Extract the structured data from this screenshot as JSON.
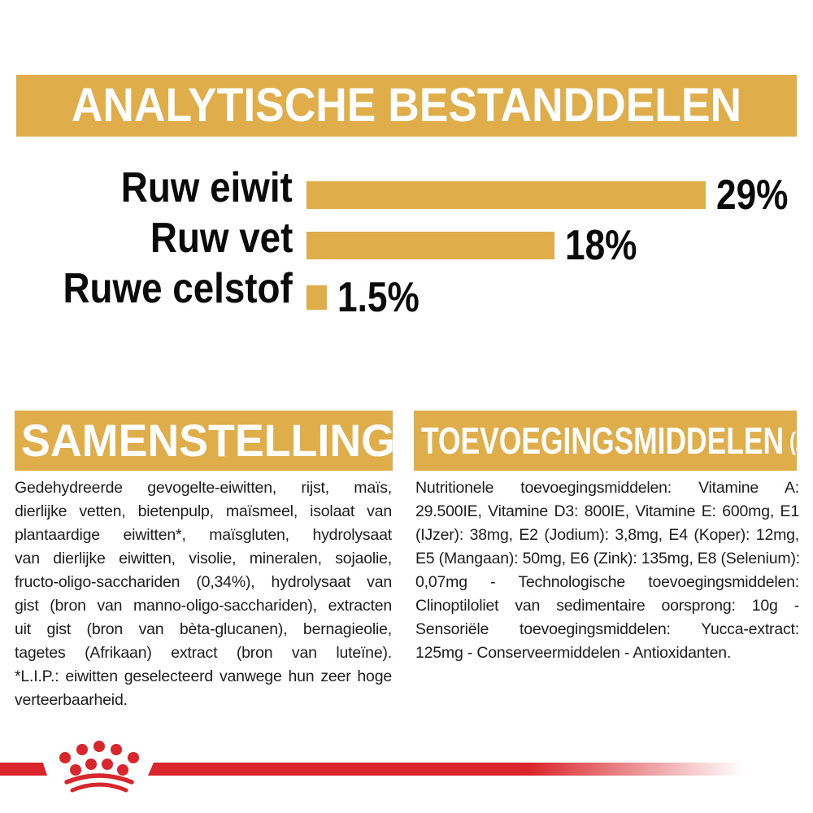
{
  "colors": {
    "gold": "#DFAE4B",
    "red": "#D8262C",
    "text": "#1D1D1D",
    "white": "#FFFFFF"
  },
  "header": {
    "title": "ANALYTISCHE BESTANDDELEN"
  },
  "chart_data": {
    "type": "bar",
    "orientation": "horizontal",
    "title": "ANALYTISCHE BESTANDDELEN",
    "categories": [
      "Ruw eiwit",
      "Ruw vet",
      "Ruwe celstof"
    ],
    "values": [
      29,
      18,
      1.5
    ],
    "value_labels": [
      "29%",
      "18%",
      "1.5%"
    ],
    "unit": "%",
    "xlim": [
      0,
      29
    ],
    "bar_color": "#DFAE4B",
    "grid": false,
    "legend": false
  },
  "composition": {
    "heading": "SAMENSTELLING",
    "lines": [
      "Gedehydreerde gevogelte-eiwitten, rijst, maïs,",
      "dierlijke vetten, bietenpulp, maïsmeel, isolaat van",
      "plantaardige eiwitten*, maïsgluten, hydrolysaat",
      "van dierlijke eiwitten, visolie, mineralen, sojaolie,",
      "fructo-oligo-sacchariden (0,34%), hydrolysaat van",
      "gist (bron van manno-oligo-sacchariden), extracten",
      "uit gist (bron van bèta-glucanen), bernagieolie,",
      "tagetes (Afrikaan) extract (bron van luteïne).",
      "*L.I.P.: eiwitten geselecteerd vanwege hun zeer hoge",
      "verteerbaarheid."
    ]
  },
  "additives": {
    "heading": "TOEVOEGINGSMIDDELEN",
    "heading_suffix": "(/kg)",
    "lines": [
      "Nutritionele toevoegingsmiddelen: Vitamine A:",
      "29.500IE, Vitamine D3: 800IE, Vitamine E: 600mg, E1",
      "(IJzer): 38mg, E2 (Jodium): 3,8mg, E4 (Koper): 12mg,",
      "E5 (Mangaan): 50mg, E6 (Zink): 135mg, E8 (Selenium):",
      "0,07mg - Technologische toevoegingsmiddelen:",
      "Clinoptiloliet van sedimentaire oorsprong: 10g -",
      "Sensoriële toevoegingsmiddelen: Yucca-extract:",
      "125mg - Conserveermiddelen - Antioxidanten."
    ]
  },
  "footer": {
    "brand_icon": "royal-canin-crown-icon"
  }
}
